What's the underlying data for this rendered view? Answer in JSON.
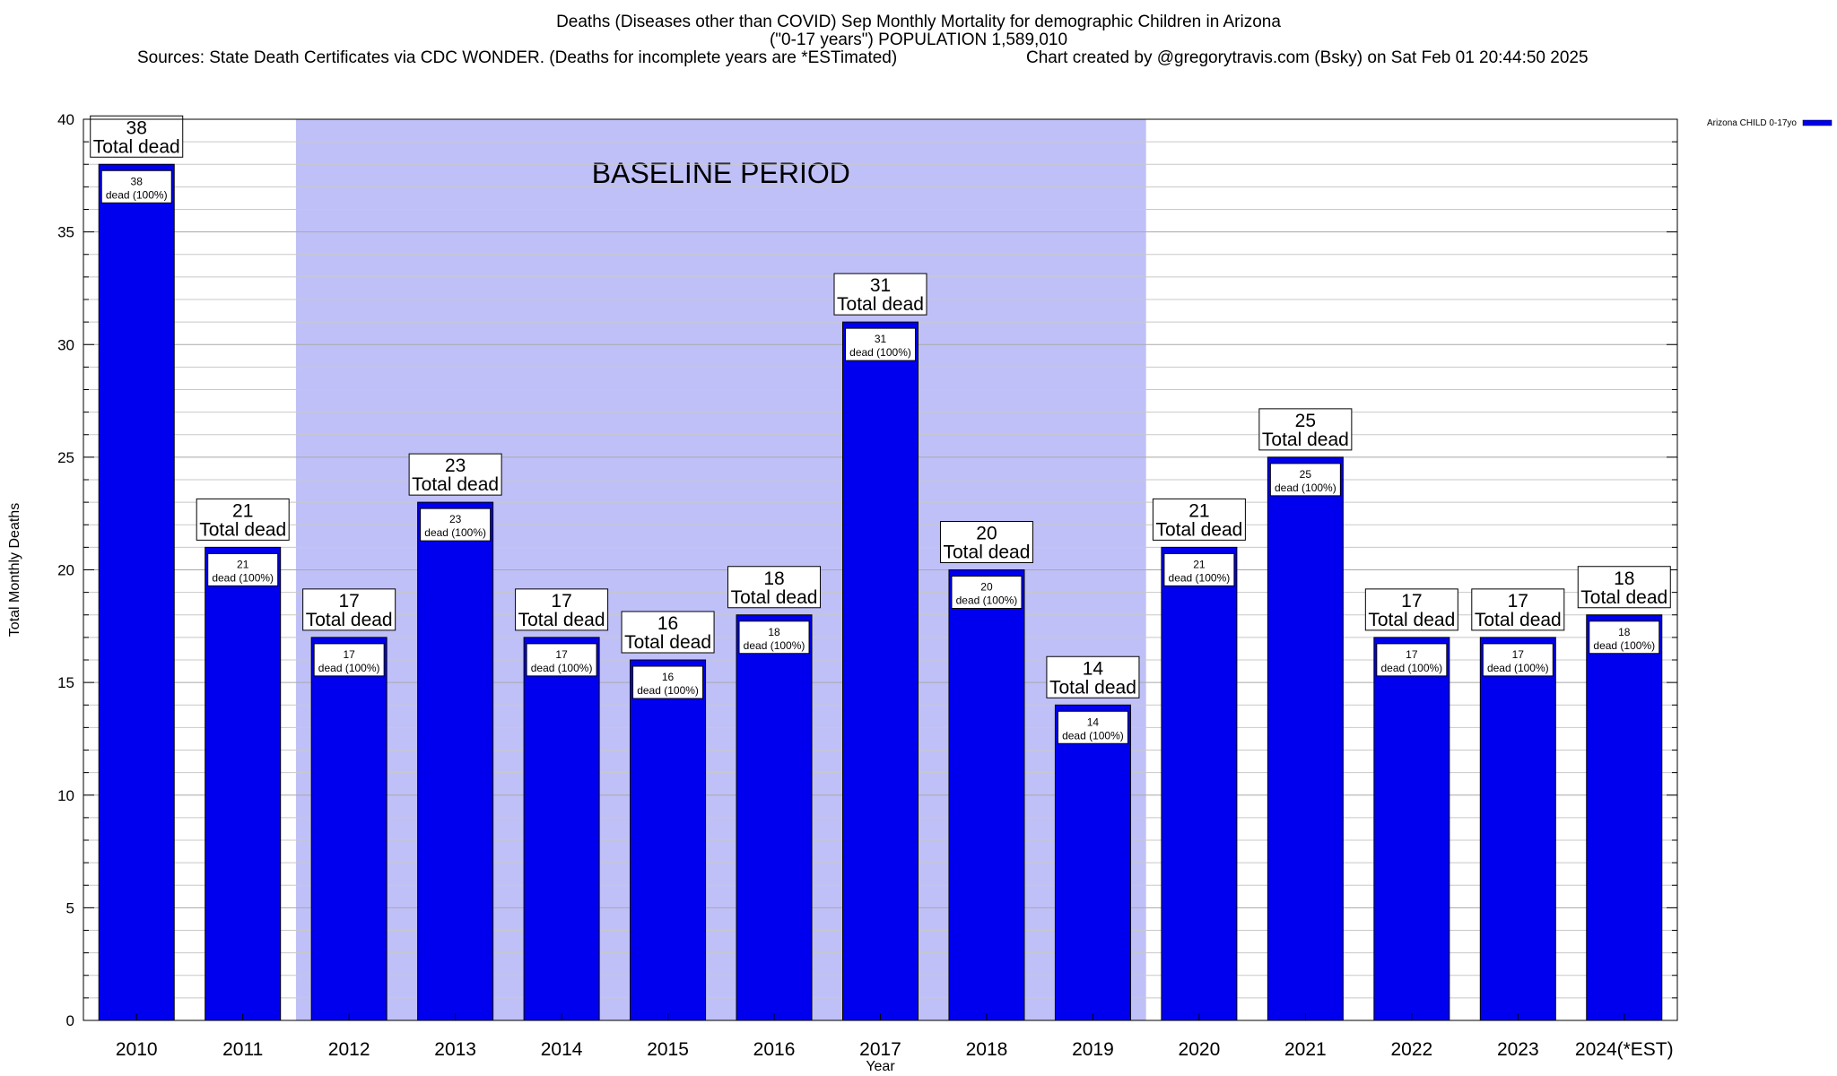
{
  "header": {
    "title": "Deaths (Diseases other than COVID) Sep Monthly Mortality for demographic Children in Arizona",
    "subtitle": "(\"0-17 years\") POPULATION 1,589,010",
    "sources": "Sources: State Death Certificates via CDC WONDER. (Deaths for incomplete years are *ESTimated)",
    "credit": "Chart created by @gregorytravis.com (Bsky) on Sat Feb 01 20:44:50 2025"
  },
  "chart_data": {
    "type": "bar",
    "xlabel": "Year",
    "ylabel": "Total Monthly Deaths",
    "ylim": [
      0,
      40
    ],
    "y_ticks": [
      0,
      5,
      10,
      15,
      20,
      25,
      30,
      35,
      40
    ],
    "grid": true,
    "legend_position": "top-right (outside plot)",
    "categories": [
      "2010",
      "2011",
      "2012",
      "2013",
      "2014",
      "2015",
      "2016",
      "2017",
      "2018",
      "2019",
      "2020",
      "2021",
      "2022",
      "2023",
      "2024(*EST)"
    ],
    "series": [
      {
        "name": "Arizona CHILD 0-17yo",
        "color": "#0000ee",
        "values": [
          38,
          21,
          17,
          23,
          17,
          16,
          18,
          31,
          20,
          14,
          21,
          25,
          17,
          17,
          18
        ]
      }
    ],
    "total_label_suffix": "Total dead",
    "inner_label_suffix": "dead (100%)",
    "baseline": {
      "label": "BASELINE PERIOD",
      "from": "2012",
      "to": "2019",
      "color": "#c0c0f8"
    }
  }
}
